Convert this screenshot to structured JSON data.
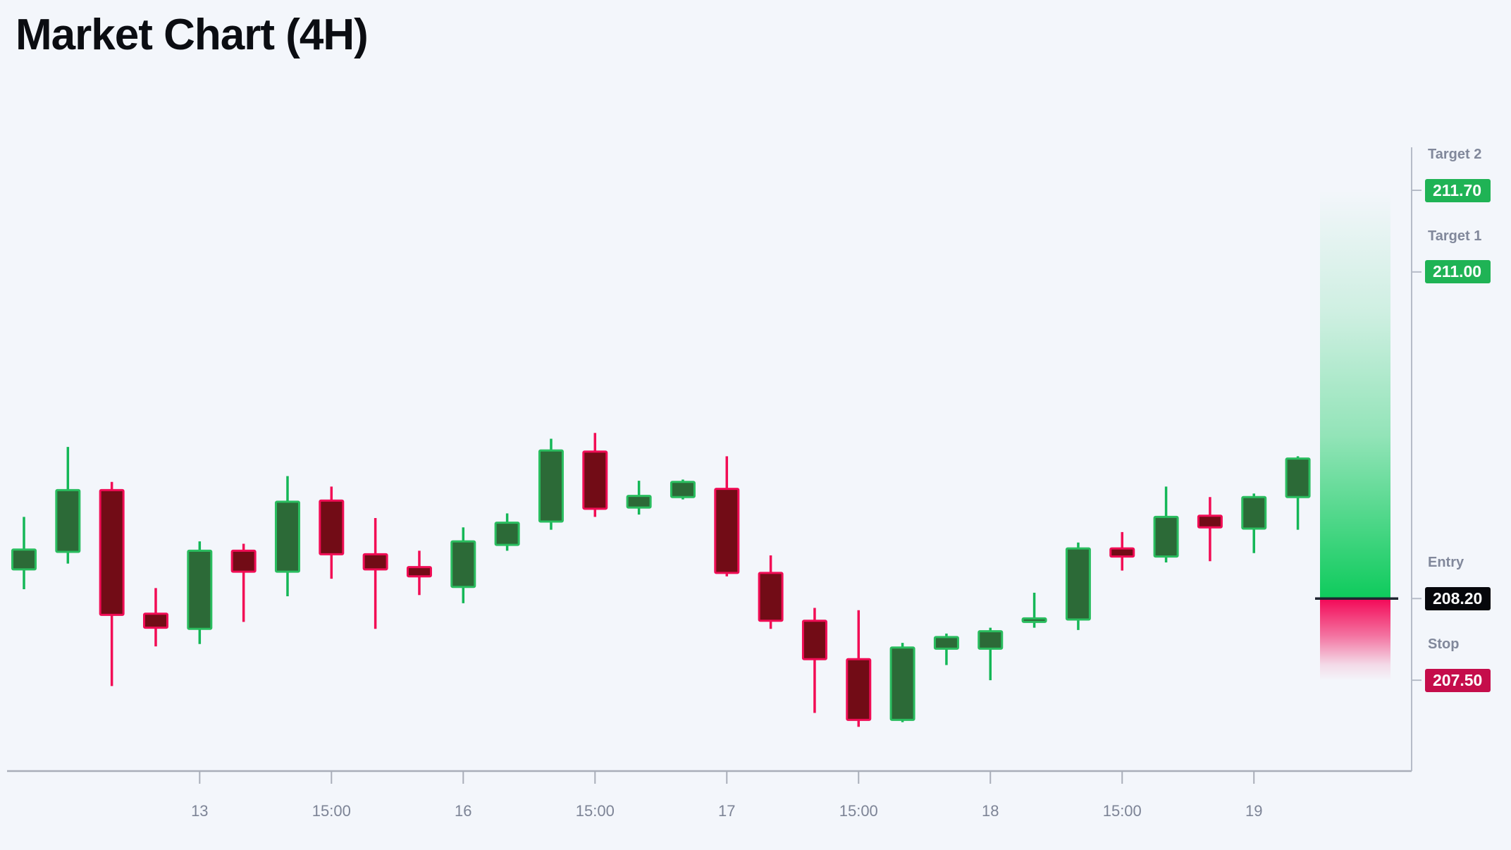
{
  "page": {
    "title": "Market Chart (4H)",
    "background": "#f3f6fb"
  },
  "chart_data": {
    "type": "candlestick",
    "title": "Market Chart (4H)",
    "timeframe": "4H",
    "xlabel": "",
    "ylabel": "",
    "ylim": [
      206.9,
      211.9
    ],
    "grid": false,
    "x_tick_labels": [
      "13",
      "15:00",
      "16",
      "15:00",
      "17",
      "15:00",
      "18",
      "15:00",
      "19"
    ],
    "x_tick_candle_indices": [
      4,
      7,
      10,
      13,
      16,
      19,
      22,
      25,
      28
    ],
    "candles": [
      {
        "o": 208.45,
        "h": 208.9,
        "l": 208.28,
        "c": 208.62
      },
      {
        "o": 208.6,
        "h": 209.5,
        "l": 208.5,
        "c": 209.13
      },
      {
        "o": 209.13,
        "h": 209.2,
        "l": 207.45,
        "c": 208.06
      },
      {
        "o": 208.07,
        "h": 208.29,
        "l": 207.79,
        "c": 207.95
      },
      {
        "o": 207.94,
        "h": 208.69,
        "l": 207.81,
        "c": 208.61
      },
      {
        "o": 208.61,
        "h": 208.67,
        "l": 208.0,
        "c": 208.43
      },
      {
        "o": 208.43,
        "h": 209.25,
        "l": 208.22,
        "c": 209.03
      },
      {
        "o": 209.04,
        "h": 209.16,
        "l": 208.37,
        "c": 208.58
      },
      {
        "o": 208.58,
        "h": 208.89,
        "l": 207.94,
        "c": 208.45
      },
      {
        "o": 208.47,
        "h": 208.61,
        "l": 208.23,
        "c": 208.39
      },
      {
        "o": 208.3,
        "h": 208.81,
        "l": 208.16,
        "c": 208.69
      },
      {
        "o": 208.66,
        "h": 208.93,
        "l": 208.61,
        "c": 208.85
      },
      {
        "o": 208.86,
        "h": 209.57,
        "l": 208.79,
        "c": 209.47
      },
      {
        "o": 209.46,
        "h": 209.62,
        "l": 208.9,
        "c": 208.97
      },
      {
        "o": 208.98,
        "h": 209.21,
        "l": 208.92,
        "c": 209.08
      },
      {
        "o": 209.07,
        "h": 209.22,
        "l": 209.05,
        "c": 209.2
      },
      {
        "o": 209.14,
        "h": 209.42,
        "l": 208.39,
        "c": 208.42
      },
      {
        "o": 208.42,
        "h": 208.57,
        "l": 207.94,
        "c": 208.01
      },
      {
        "o": 208.01,
        "h": 208.12,
        "l": 207.22,
        "c": 207.68
      },
      {
        "o": 207.68,
        "h": 208.1,
        "l": 207.1,
        "c": 207.16
      },
      {
        "o": 207.16,
        "h": 207.82,
        "l": 207.14,
        "c": 207.78
      },
      {
        "o": 207.77,
        "h": 207.9,
        "l": 207.63,
        "c": 207.87
      },
      {
        "o": 207.77,
        "h": 207.95,
        "l": 207.5,
        "c": 207.92
      },
      {
        "o": 208.0,
        "h": 208.25,
        "l": 207.95,
        "c": 208.03
      },
      {
        "o": 208.02,
        "h": 208.68,
        "l": 207.93,
        "c": 208.63
      },
      {
        "o": 208.63,
        "h": 208.77,
        "l": 208.44,
        "c": 208.56
      },
      {
        "o": 208.56,
        "h": 209.16,
        "l": 208.51,
        "c": 208.9
      },
      {
        "o": 208.91,
        "h": 209.07,
        "l": 208.52,
        "c": 208.81
      },
      {
        "o": 208.8,
        "h": 209.1,
        "l": 208.59,
        "c": 209.07
      },
      {
        "o": 209.07,
        "h": 209.42,
        "l": 208.79,
        "c": 209.4
      }
    ],
    "levels": [
      {
        "id": "target2",
        "label": "Target 2",
        "value": "211.70",
        "price": 211.7,
        "badge_color": "#1fb355"
      },
      {
        "id": "target1",
        "label": "Target 1",
        "value": "211.00",
        "price": 211.0,
        "badge_color": "#1fb355"
      },
      {
        "id": "entry",
        "label": "Entry",
        "value": "208.20",
        "price": 208.2,
        "badge_color": "#06070b"
      },
      {
        "id": "stop",
        "label": "Stop",
        "value": "207.50",
        "price": 207.5,
        "badge_color": "#c50d4b"
      }
    ],
    "zones": {
      "profit": {
        "from_price": 208.2,
        "to_price": 211.7,
        "color": "#0ecb5c"
      },
      "risk": {
        "from_price": 207.5,
        "to_price": 208.2,
        "color": "#f30a58"
      }
    },
    "colors": {
      "background": "#f3f6fb",
      "bull_fill": "#2c6a37",
      "bull_border": "#2abd5f",
      "bull_wick": "#14b757",
      "bear_fill": "#720c16",
      "bear_border": "#f00d55",
      "bear_wick": "#f20c55",
      "axis_vertical": "#b6bcc8",
      "axis_horizontal": "#a9aeb9",
      "tick_label": "#7d8496",
      "level_label": "#81889b",
      "entry_line": "#1f2430"
    },
    "legend": null,
    "legend_position": null
  }
}
